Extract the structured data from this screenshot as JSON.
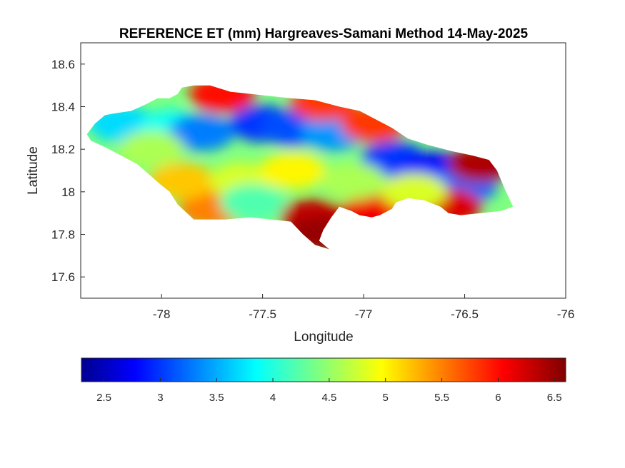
{
  "chart_data": {
    "type": "heatmap",
    "title": "REFERENCE ET (mm) Hargreaves-Samani Method  14-May-2025",
    "xlabel": "Longitude",
    "ylabel": "Latitude",
    "xlim": [
      -78.4,
      -76
    ],
    "ylim": [
      17.5,
      18.7
    ],
    "xticks": [
      -78,
      -77.5,
      -77,
      -76.5,
      -76
    ],
    "xtick_labels": [
      "-78",
      "-77.5",
      "-77",
      "-76.5",
      "-76"
    ],
    "yticks": [
      17.6,
      17.8,
      18,
      18.2,
      18.4,
      18.6
    ],
    "ytick_labels": [
      "17.6",
      "17.8",
      "18",
      "18.2",
      "18.4",
      "18.6"
    ],
    "colormap": "jet",
    "colorbar": {
      "location": "south",
      "clim": [
        2.3,
        6.6
      ],
      "ticks": [
        2.5,
        3,
        3.5,
        4,
        4.5,
        5,
        5.5,
        6,
        6.5
      ],
      "tick_labels": [
        "2.5",
        "3",
        "3.5",
        "4",
        "4.5",
        "5",
        "5.5",
        "6",
        "6.5"
      ],
      "colors": [
        "#00008f",
        "#0000ff",
        "#00ffff",
        "#ffff00",
        "#ff0000",
        "#800000"
      ]
    },
    "island_outline": [
      [
        -78.37,
        18.27
      ],
      [
        -78.33,
        18.32
      ],
      [
        -78.28,
        18.36
      ],
      [
        -78.22,
        18.37
      ],
      [
        -78.15,
        18.38
      ],
      [
        -78.08,
        18.41
      ],
      [
        -78.02,
        18.44
      ],
      [
        -77.96,
        18.44
      ],
      [
        -77.92,
        18.46
      ],
      [
        -77.9,
        18.49
      ],
      [
        -77.84,
        18.5
      ],
      [
        -77.76,
        18.5
      ],
      [
        -77.66,
        18.47
      ],
      [
        -77.56,
        18.46
      ],
      [
        -77.46,
        18.45
      ],
      [
        -77.36,
        18.44
      ],
      [
        -77.24,
        18.43
      ],
      [
        -77.12,
        18.4
      ],
      [
        -77.02,
        18.38
      ],
      [
        -76.94,
        18.34
      ],
      [
        -76.86,
        18.3
      ],
      [
        -76.78,
        18.25
      ],
      [
        -76.68,
        18.22
      ],
      [
        -76.56,
        18.19
      ],
      [
        -76.46,
        18.17
      ],
      [
        -76.38,
        18.15
      ],
      [
        -76.34,
        18.1
      ],
      [
        -76.3,
        18.01
      ],
      [
        -76.26,
        17.93
      ],
      [
        -76.32,
        17.91
      ],
      [
        -76.42,
        17.9
      ],
      [
        -76.52,
        17.89
      ],
      [
        -76.58,
        17.9
      ],
      [
        -76.62,
        17.93
      ],
      [
        -76.7,
        17.96
      ],
      [
        -76.78,
        17.97
      ],
      [
        -76.84,
        17.95
      ],
      [
        -76.86,
        17.92
      ],
      [
        -76.92,
        17.89
      ],
      [
        -76.96,
        17.88
      ],
      [
        -77.02,
        17.89
      ],
      [
        -77.06,
        17.91
      ],
      [
        -77.12,
        17.93
      ],
      [
        -77.16,
        17.88
      ],
      [
        -77.2,
        17.82
      ],
      [
        -77.22,
        17.77
      ],
      [
        -77.17,
        17.73
      ],
      [
        -77.24,
        17.75
      ],
      [
        -77.3,
        17.8
      ],
      [
        -77.36,
        17.86
      ],
      [
        -77.46,
        17.87
      ],
      [
        -77.56,
        17.88
      ],
      [
        -77.68,
        17.87
      ],
      [
        -77.76,
        17.87
      ],
      [
        -77.84,
        17.87
      ],
      [
        -77.92,
        17.94
      ],
      [
        -77.96,
        18.0
      ],
      [
        -78.0,
        18.03
      ],
      [
        -78.06,
        18.08
      ],
      [
        -78.12,
        18.13
      ],
      [
        -78.2,
        18.17
      ],
      [
        -78.28,
        18.21
      ],
      [
        -78.35,
        18.24
      ]
    ],
    "approx_regions": [
      {
        "lon": -78.2,
        "lat": 18.32,
        "et": 3.7
      },
      {
        "lon": -77.95,
        "lat": 18.3,
        "et": 3.9
      },
      {
        "lon": -77.8,
        "lat": 18.28,
        "et": 3.3
      },
      {
        "lon": -77.5,
        "lat": 18.32,
        "et": 3.0
      },
      {
        "lon": -77.35,
        "lat": 18.3,
        "et": 3.1
      },
      {
        "lon": -77.15,
        "lat": 18.28,
        "et": 3.4
      },
      {
        "lon": -76.85,
        "lat": 18.15,
        "et": 3.0
      },
      {
        "lon": -76.65,
        "lat": 18.1,
        "et": 2.8
      },
      {
        "lon": -76.5,
        "lat": 18.03,
        "et": 3.2
      },
      {
        "lon": -77.7,
        "lat": 18.46,
        "et": 6.0
      },
      {
        "lon": -77.2,
        "lat": 18.42,
        "et": 5.8
      },
      {
        "lon": -76.95,
        "lat": 18.32,
        "et": 5.8
      },
      {
        "lon": -76.42,
        "lat": 18.13,
        "et": 6.4
      },
      {
        "lon": -77.25,
        "lat": 17.88,
        "et": 6.3
      },
      {
        "lon": -77.22,
        "lat": 17.8,
        "et": 6.5
      },
      {
        "lon": -76.95,
        "lat": 17.9,
        "et": 6.1
      },
      {
        "lon": -76.58,
        "lat": 17.93,
        "et": 6.2
      },
      {
        "lon": -77.75,
        "lat": 17.92,
        "et": 5.5
      },
      {
        "lon": -77.9,
        "lat": 18.05,
        "et": 5.2
      },
      {
        "lon": -77.6,
        "lat": 18.05,
        "et": 4.8
      },
      {
        "lon": -77.35,
        "lat": 18.1,
        "et": 5.0
      },
      {
        "lon": -77.05,
        "lat": 18.05,
        "et": 4.6
      },
      {
        "lon": -77.55,
        "lat": 17.95,
        "et": 4.2
      },
      {
        "lon": -78.05,
        "lat": 18.2,
        "et": 4.6
      },
      {
        "lon": -76.75,
        "lat": 18.0,
        "et": 4.8
      }
    ]
  }
}
